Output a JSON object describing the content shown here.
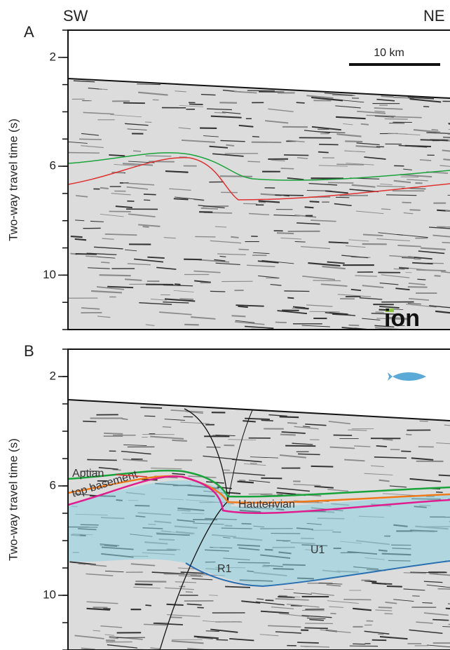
{
  "header": {
    "left": "SW",
    "right": "NE"
  },
  "panels": [
    {
      "label": "A",
      "y_axis_label": "Two-way travel time (s)",
      "ylim": [
        1,
        12
      ],
      "yticks": [
        2,
        6,
        10
      ],
      "scale_bar": "10 km",
      "logo": "ion"
    },
    {
      "label": "B",
      "y_axis_label": "Two-way travel time (s)",
      "ylim": [
        1,
        12
      ],
      "yticks": [
        2,
        6,
        10
      ],
      "annotations": [
        "Aptian",
        "top basement",
        "Hauterivian",
        "U1",
        "R1"
      ]
    }
  ]
}
